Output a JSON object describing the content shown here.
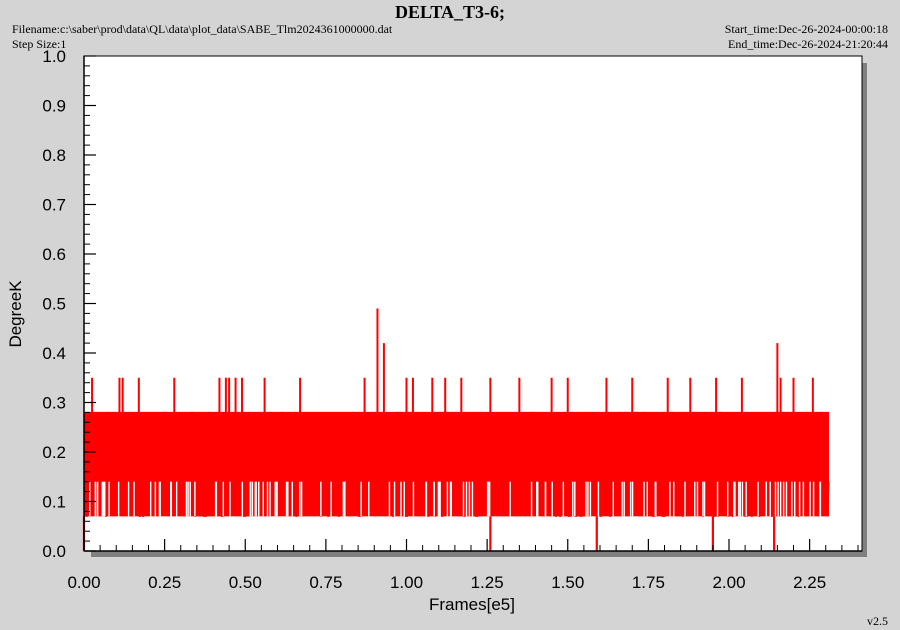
{
  "header": {
    "title": "DELTA_T3-6;",
    "filename": "Filename:c:\\saber\\prod\\data\\QL\\data\\plot_data\\SABE_Tlm2024361000000.dat",
    "step_size": "Step Size:1",
    "start_time": "Start_time:Dec-26-2024-00:00:18",
    "end_time": "End_time:Dec-26-2024-21:20:44",
    "version": "v2.5"
  },
  "colors": {
    "series": "#ff0000",
    "plot_background": "#ffffff",
    "page_background": "#d4d4d4",
    "shadow": "#808080"
  },
  "chart_data": {
    "type": "line",
    "title": "DELTA_T3-6;",
    "xlabel": "Frames[e5]",
    "ylabel": "DegreeK",
    "xlim": [
      0,
      2.42
    ],
    "ylim": [
      0,
      1.0
    ],
    "x_ticks": [
      "0.00",
      "0.25",
      "0.50",
      "0.75",
      "1.00",
      "1.25",
      "1.50",
      "1.75",
      "2.00",
      "2.25"
    ],
    "y_ticks": [
      "0.0",
      "0.1",
      "0.2",
      "0.3",
      "0.4",
      "0.5",
      "0.6",
      "0.7",
      "0.8",
      "0.9",
      "1.0"
    ],
    "grid": false,
    "series": [
      {
        "x_range": [
          0,
          2.31
        ],
        "dense_band": [
          0.07,
          0.28
        ],
        "typical_levels": [
          0.07,
          0.14,
          0.21,
          0.28
        ],
        "spikes": [
          {
            "x": 0.025,
            "y": 0.35
          },
          {
            "x": 0.11,
            "y": 0.35
          },
          {
            "x": 0.12,
            "y": 0.35
          },
          {
            "x": 0.17,
            "y": 0.35
          },
          {
            "x": 0.28,
            "y": 0.35
          },
          {
            "x": 0.42,
            "y": 0.35
          },
          {
            "x": 0.44,
            "y": 0.35
          },
          {
            "x": 0.45,
            "y": 0.35
          },
          {
            "x": 0.47,
            "y": 0.35
          },
          {
            "x": 0.49,
            "y": 0.35
          },
          {
            "x": 0.56,
            "y": 0.35
          },
          {
            "x": 0.67,
            "y": 0.35
          },
          {
            "x": 0.87,
            "y": 0.35
          },
          {
            "x": 0.91,
            "y": 0.49
          },
          {
            "x": 0.93,
            "y": 0.42
          },
          {
            "x": 1.0,
            "y": 0.35
          },
          {
            "x": 1.02,
            "y": 0.35
          },
          {
            "x": 1.08,
            "y": 0.35
          },
          {
            "x": 1.12,
            "y": 0.35
          },
          {
            "x": 1.17,
            "y": 0.35
          },
          {
            "x": 1.26,
            "y": 0.35
          },
          {
            "x": 1.35,
            "y": 0.35
          },
          {
            "x": 1.45,
            "y": 0.35
          },
          {
            "x": 1.5,
            "y": 0.35
          },
          {
            "x": 1.62,
            "y": 0.35
          },
          {
            "x": 1.7,
            "y": 0.35
          },
          {
            "x": 1.81,
            "y": 0.35
          },
          {
            "x": 1.88,
            "y": 0.35
          },
          {
            "x": 1.96,
            "y": 0.35
          },
          {
            "x": 2.04,
            "y": 0.35
          },
          {
            "x": 2.15,
            "y": 0.42
          },
          {
            "x": 2.16,
            "y": 0.35
          },
          {
            "x": 2.2,
            "y": 0.35
          },
          {
            "x": 2.26,
            "y": 0.35
          }
        ],
        "dips": [
          {
            "x": 0.0,
            "y": 0.0
          },
          {
            "x": 1.26,
            "y": 0.0
          },
          {
            "x": 1.59,
            "y": 0.0
          },
          {
            "x": 1.95,
            "y": 0.0
          },
          {
            "x": 2.14,
            "y": 0.0
          }
        ]
      }
    ]
  }
}
